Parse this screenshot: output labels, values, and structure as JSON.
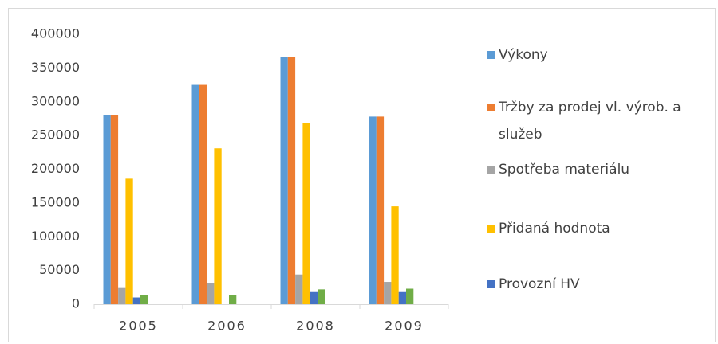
{
  "chart_data": {
    "type": "bar",
    "categories": [
      "2005",
      "2006",
      "2008",
      "2009"
    ],
    "series": [
      {
        "name": "Výkony",
        "color": "#5b9bd5",
        "values": [
          280000,
          325000,
          366000,
          278000
        ]
      },
      {
        "name": "Tržby za prodej vl. výrob. a služeb",
        "color": "#ed7d31",
        "values": [
          280000,
          325000,
          366000,
          278000
        ]
      },
      {
        "name": "Spotřeba materiálu",
        "color": "#a5a5a5",
        "values": [
          24000,
          31000,
          44000,
          33000
        ]
      },
      {
        "name": "Přidaná hodnota",
        "color": "#ffc000",
        "values": [
          186000,
          231000,
          269000,
          145000
        ]
      },
      {
        "name": "Provozní HV",
        "color": "#4472c4",
        "values": [
          10000,
          0,
          18000,
          18000
        ]
      },
      {
        "color": "#70ad47",
        "values": [
          13000,
          13000,
          22000,
          23000
        ]
      }
    ],
    "ylim": [
      0,
      400000
    ],
    "yticks": [
      0,
      50000,
      100000,
      150000,
      200000,
      250000,
      300000,
      350000,
      400000
    ],
    "grid": false
  }
}
